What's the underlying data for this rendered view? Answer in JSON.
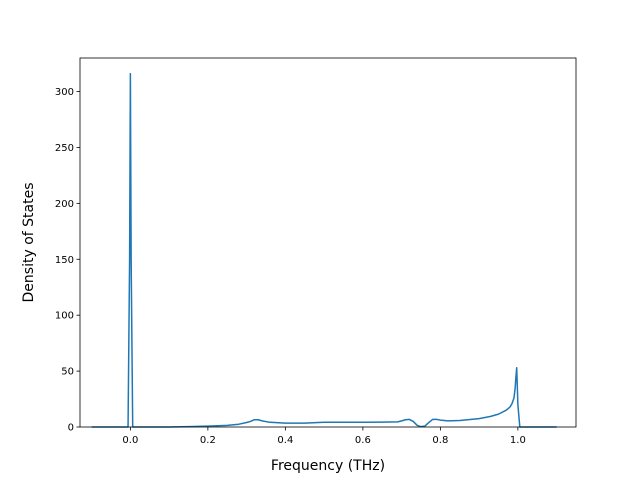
{
  "chart_data": {
    "type": "line",
    "title": "",
    "xlabel": "Frequency (THz)",
    "ylabel": "Density of States",
    "xlim": [
      -0.13,
      1.15
    ],
    "ylim": [
      0,
      330
    ],
    "x_ticks": [
      0.0,
      0.2,
      0.4,
      0.6,
      0.8,
      1.0
    ],
    "x_tick_labels": [
      "0.0",
      "0.2",
      "0.4",
      "0.6",
      "0.8",
      "1.0"
    ],
    "y_ticks": [
      0,
      50,
      100,
      150,
      200,
      250,
      300
    ],
    "y_tick_labels": [
      "0",
      "50",
      "100",
      "150",
      "200",
      "250",
      "300"
    ],
    "grid": false,
    "line_color": "#1f77b4",
    "series": [
      {
        "x": [
          -0.1,
          -0.006,
          -0.002,
          0.0,
          0.002,
          0.006,
          0.05,
          0.1,
          0.15,
          0.2,
          0.25,
          0.28,
          0.3,
          0.31,
          0.32,
          0.33,
          0.34,
          0.36,
          0.4,
          0.45,
          0.5,
          0.55,
          0.6,
          0.65,
          0.69,
          0.7,
          0.71,
          0.72,
          0.73,
          0.74,
          0.75,
          0.76,
          0.77,
          0.78,
          0.79,
          0.8,
          0.82,
          0.85,
          0.88,
          0.9,
          0.93,
          0.95,
          0.97,
          0.98,
          0.985,
          0.99,
          0.993,
          0.995,
          0.997,
          1.0,
          1.005,
          1.05,
          1.1
        ],
        "y": [
          0,
          0,
          150,
          316,
          150,
          0,
          0,
          0,
          0.3,
          0.8,
          1.5,
          2.5,
          4,
          5,
          6.5,
          6.5,
          5.5,
          4.2,
          3.5,
          3.5,
          4.2,
          4.3,
          4.3,
          4.4,
          4.6,
          5.5,
          6.5,
          6.8,
          5,
          1.5,
          0.3,
          0.8,
          4,
          6.8,
          6.8,
          6.2,
          5.5,
          5.8,
          6.8,
          7.5,
          9.5,
          11.5,
          15,
          18,
          21,
          26,
          35,
          45,
          53,
          20,
          0,
          0,
          0
        ]
      }
    ]
  }
}
